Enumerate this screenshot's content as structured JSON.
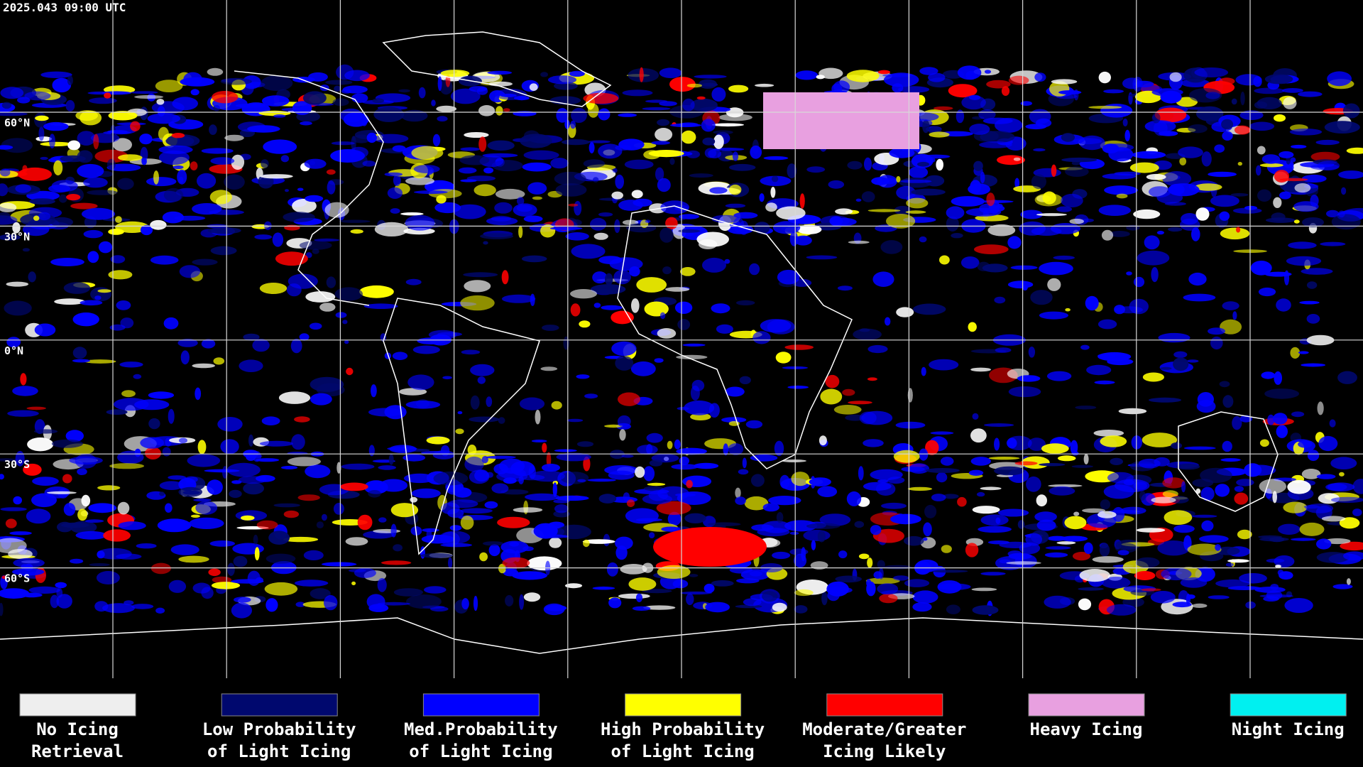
{
  "header": {
    "timestamp": "2025.043 09:00 UTC"
  },
  "map": {
    "latitude_labels": [
      "60°N",
      "30°N",
      "0°N",
      "30°S",
      "60°S"
    ]
  },
  "legend": [
    {
      "label": [
        "No Icing",
        "Retrieval"
      ],
      "color": "#eeeeee"
    },
    {
      "label": [
        "Low Probability",
        "of Light Icing"
      ],
      "color": "#00086e"
    },
    {
      "label": [
        "Med.Probability",
        "of Light Icing"
      ],
      "color": "#0000ff"
    },
    {
      "label": [
        "High Probability",
        "of Light Icing"
      ],
      "color": "#ffff00"
    },
    {
      "label": [
        "Moderate/Greater",
        "Icing Likely"
      ],
      "color": "#ff0000"
    },
    {
      "label": [
        "Heavy Icing"
      ],
      "color": "#e8a0e0"
    },
    {
      "label": [
        "Night Icing"
      ],
      "color": "#00f0f0"
    }
  ]
}
